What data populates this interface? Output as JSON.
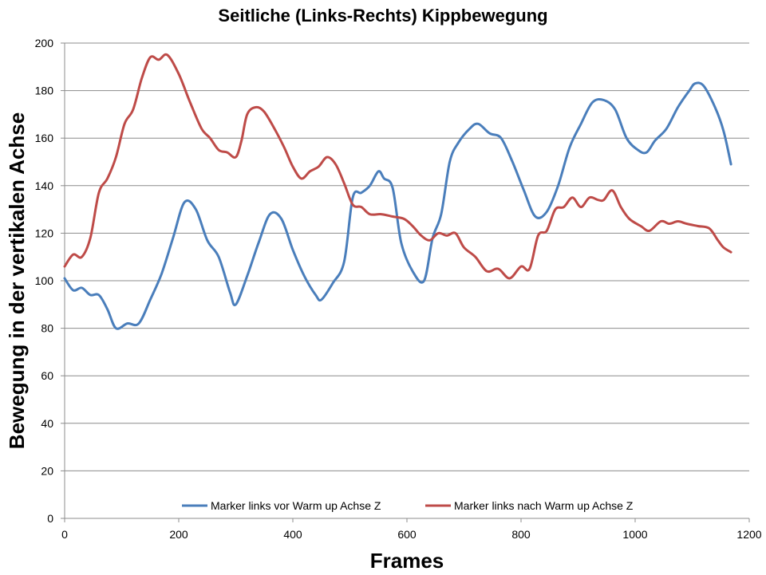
{
  "chart_data": {
    "type": "line",
    "title": "Seitliche (Links-Rechts) Kippbewegung",
    "xlabel": "Frames",
    "ylabel": "Bewegung in der vertikalen Achse",
    "xlim": [
      0,
      1200
    ],
    "ylim": [
      0,
      200
    ],
    "xticks": [
      0,
      200,
      400,
      600,
      800,
      1000,
      1200
    ],
    "yticks": [
      0,
      20,
      40,
      60,
      80,
      100,
      120,
      140,
      160,
      180,
      200
    ],
    "grid": "horizontal",
    "legend_position": "bottom-inside",
    "series": [
      {
        "name": "Marker links vor Warm up Achse Z",
        "color": "#4a7ebb",
        "x": [
          0,
          15,
          30,
          45,
          60,
          75,
          90,
          110,
          130,
          150,
          170,
          190,
          210,
          230,
          250,
          270,
          290,
          300,
          320,
          340,
          360,
          380,
          400,
          420,
          440,
          450,
          470,
          490,
          505,
          520,
          535,
          550,
          560,
          575,
          590,
          610,
          630,
          645,
          660,
          675,
          690,
          710,
          725,
          745,
          765,
          785,
          805,
          825,
          845,
          865,
          885,
          905,
          925,
          945,
          965,
          985,
          1005,
          1020,
          1035,
          1055,
          1075,
          1095,
          1105,
          1120,
          1140,
          1155,
          1168
        ],
        "values": [
          101,
          96,
          97,
          94,
          94,
          88,
          80,
          82,
          82,
          92,
          103,
          118,
          133,
          130,
          117,
          110,
          95,
          90,
          102,
          116,
          128,
          126,
          113,
          102,
          94,
          92,
          99,
          108,
          135,
          137,
          140,
          146,
          143,
          139,
          116,
          104,
          100,
          118,
          128,
          150,
          158,
          164,
          166,
          162,
          160,
          150,
          138,
          127,
          129,
          140,
          156,
          166,
          175,
          176,
          172,
          160,
          155,
          154,
          159,
          164,
          173,
          180,
          183,
          182,
          173,
          163,
          149
        ]
      },
      {
        "name": "Marker links nach Warm up Achse Z",
        "color": "#be4b48",
        "x": [
          0,
          15,
          30,
          45,
          60,
          75,
          90,
          105,
          120,
          135,
          150,
          165,
          180,
          200,
          220,
          240,
          255,
          270,
          285,
          300,
          310,
          320,
          335,
          350,
          370,
          385,
          400,
          415,
          430,
          445,
          460,
          475,
          490,
          505,
          520,
          535,
          555,
          575,
          595,
          610,
          625,
          640,
          655,
          670,
          685,
          700,
          720,
          740,
          760,
          780,
          800,
          815,
          830,
          845,
          860,
          875,
          890,
          905,
          920,
          935,
          945,
          960,
          975,
          990,
          1010,
          1025,
          1045,
          1060,
          1075,
          1090,
          1110,
          1130,
          1145,
          1155,
          1168
        ],
        "values": [
          106,
          111,
          110,
          118,
          137,
          143,
          152,
          166,
          172,
          185,
          194,
          193,
          195,
          187,
          175,
          164,
          160,
          155,
          154,
          152,
          159,
          170,
          173,
          171,
          163,
          156,
          148,
          143,
          146,
          148,
          152,
          149,
          141,
          132,
          131,
          128,
          128,
          127,
          126,
          123,
          119,
          117,
          120,
          119,
          120,
          114,
          110,
          104,
          105,
          101,
          106,
          105,
          119,
          121,
          130,
          131,
          135,
          131,
          135,
          134,
          134,
          138,
          131,
          126,
          123,
          121,
          125,
          124,
          125,
          124,
          123,
          122,
          117,
          114,
          112
        ]
      }
    ]
  }
}
